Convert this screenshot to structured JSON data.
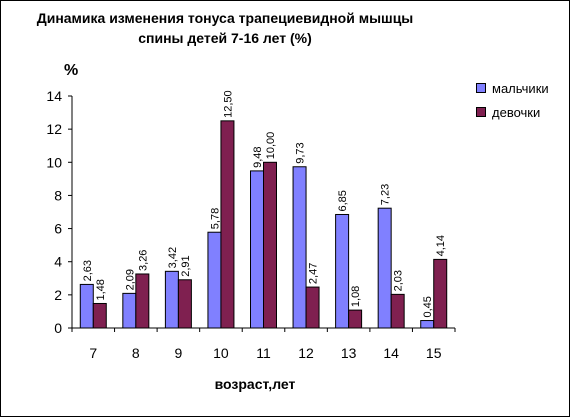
{
  "chart_data": {
    "type": "bar",
    "title_lines": [
      "Динамика изменения тонуса трапециевидной мышцы",
      "спины детей 7-16 лет (%)"
    ],
    "ylabel": "%",
    "xlabel": "возраст,лет",
    "categories": [
      "7",
      "8",
      "9",
      "10",
      "11",
      "12",
      "13",
      "14",
      "15"
    ],
    "ylim": [
      0,
      14
    ],
    "yticks": [
      "0",
      "2",
      "4",
      "6",
      "8",
      "10",
      "12",
      "14"
    ],
    "series": [
      {
        "name": "мальчики",
        "color": "#8080ff",
        "values": [
          2.63,
          2.09,
          3.42,
          5.78,
          9.48,
          9.73,
          6.85,
          7.23,
          0.45
        ],
        "labels": [
          "2,63",
          "2,09",
          "3,42",
          "5,78",
          "9,48",
          "9,73",
          "6,85",
          "7,23",
          "0,45"
        ]
      },
      {
        "name": "девочки",
        "color": "#7f2050",
        "values": [
          1.48,
          3.26,
          2.91,
          12.5,
          10.0,
          2.47,
          1.08,
          2.03,
          4.14
        ],
        "labels": [
          "1,48",
          "3,26",
          "2,91",
          "12,50",
          "10,00",
          "2,47",
          "1,08",
          "2,03",
          "4,14"
        ]
      }
    ],
    "legend_position": "right",
    "grid": false
  }
}
